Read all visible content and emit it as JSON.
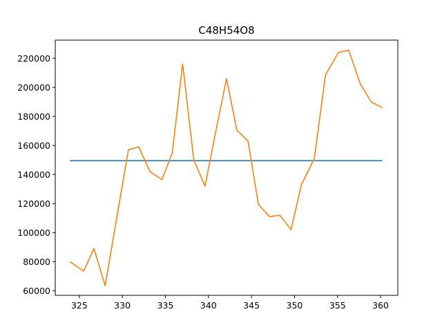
{
  "chart_data": {
    "type": "line",
    "title": "C48H54O8",
    "xlabel": "",
    "ylabel": "",
    "xlim": [
      322.2,
      362.0
    ],
    "ylim": [
      56800,
      232500
    ],
    "grid": false,
    "legend": "none",
    "x_ticks": [
      325,
      330,
      335,
      340,
      345,
      350,
      355,
      360
    ],
    "y_ticks": [
      60000,
      80000,
      100000,
      120000,
      140000,
      160000,
      180000,
      200000,
      220000
    ],
    "x_tick_labels": [
      "325",
      "330",
      "335",
      "340",
      "345",
      "350",
      "355",
      "360"
    ],
    "y_tick_labels": [
      "60000",
      "80000",
      "100000",
      "120000",
      "140000",
      "160000",
      "180000",
      "200000",
      "220000"
    ],
    "series": [
      {
        "color": "#1f77b4",
        "x": [
          323.9,
          360.2
        ],
        "y": [
          149500,
          149500
        ]
      },
      {
        "color": "#ff7f0e",
        "x": [
          323.9,
          325.5,
          326.7,
          328.0,
          329.4,
          330.7,
          331.9,
          333.2,
          334.6,
          335.8,
          337.0,
          338.3,
          339.6,
          340.8,
          342.1,
          343.3,
          344.6,
          345.8,
          347.1,
          348.3,
          349.6,
          350.8,
          352.3,
          353.6,
          355.1,
          356.3,
          357.6,
          358.9,
          360.2
        ],
        "y": [
          80000,
          73500,
          89000,
          63500,
          112000,
          157000,
          159000,
          142000,
          136500,
          155000,
          216000,
          150000,
          132000,
          168000,
          206000,
          170500,
          163000,
          119500,
          111000,
          112000,
          102000,
          133000,
          151000,
          208500,
          224000,
          225500,
          203000,
          190000,
          186000
        ]
      }
    ]
  }
}
